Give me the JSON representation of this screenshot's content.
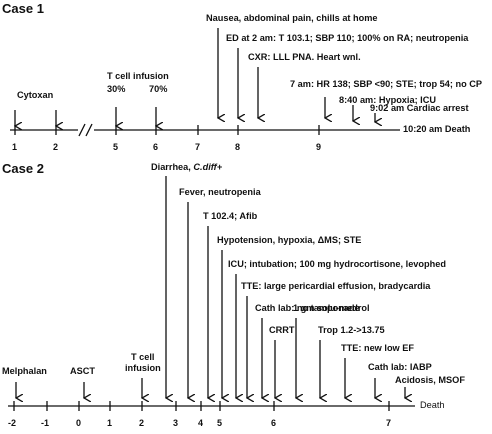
{
  "case1": {
    "title": "Case 1",
    "events": {
      "cytoxan": "Cytoxan",
      "tcell_infusion": "T cell infusion",
      "pct30": "30%",
      "pct70": "70%",
      "nausea": "Nausea, abdominal pain, chills at home",
      "ed": "ED at 2 am: T 103.1; SBP 110; 100% on RA; neutropenia",
      "cxr": "CXR: LLL PNA. Heart wnl.",
      "hr7am": "7 am: HR 138; SBP <90; STE; trop 54; no CP",
      "hypoxia": "8:40 am: Hypoxia; ICU",
      "arrest": "9:02 am Cardiac arrest",
      "death": "10:20 am Death"
    },
    "ticks": [
      "1",
      "2",
      "5",
      "6",
      "7",
      "8",
      "9"
    ],
    "break_mark": "//"
  },
  "case2": {
    "title": "Case 2",
    "events": {
      "diarrhea": "Diarrhea,",
      "cdiff": "C.diff+",
      "fever": "Fever, neutropenia",
      "t1024": "T 102.4; Afib",
      "hypotension": "Hypotension, hypoxia, ΔMS; STE",
      "icu": "ICU; intubation; 100 mg hydrocortisone, levophed",
      "tte1": "TTE: large pericardial effusion, bradycardia",
      "cathlab1": "Cath lab: no tamponade",
      "crrt": "CRRT",
      "solu": "1 gm solu-medrol",
      "trop": "Trop 1.2->13.75",
      "tte2": "TTE: new low EF",
      "cathlab2": "Cath lab: IABP",
      "acidosis": "Acidosis, MSOF",
      "melphalan": "Melphalan",
      "asct": "ASCT",
      "tcell1": "T cell",
      "tcell2": "infusion",
      "death": "Death"
    },
    "ticks": [
      "-2",
      "-1",
      "0",
      "1",
      "2",
      "3",
      "4",
      "5",
      "6",
      "7"
    ]
  }
}
